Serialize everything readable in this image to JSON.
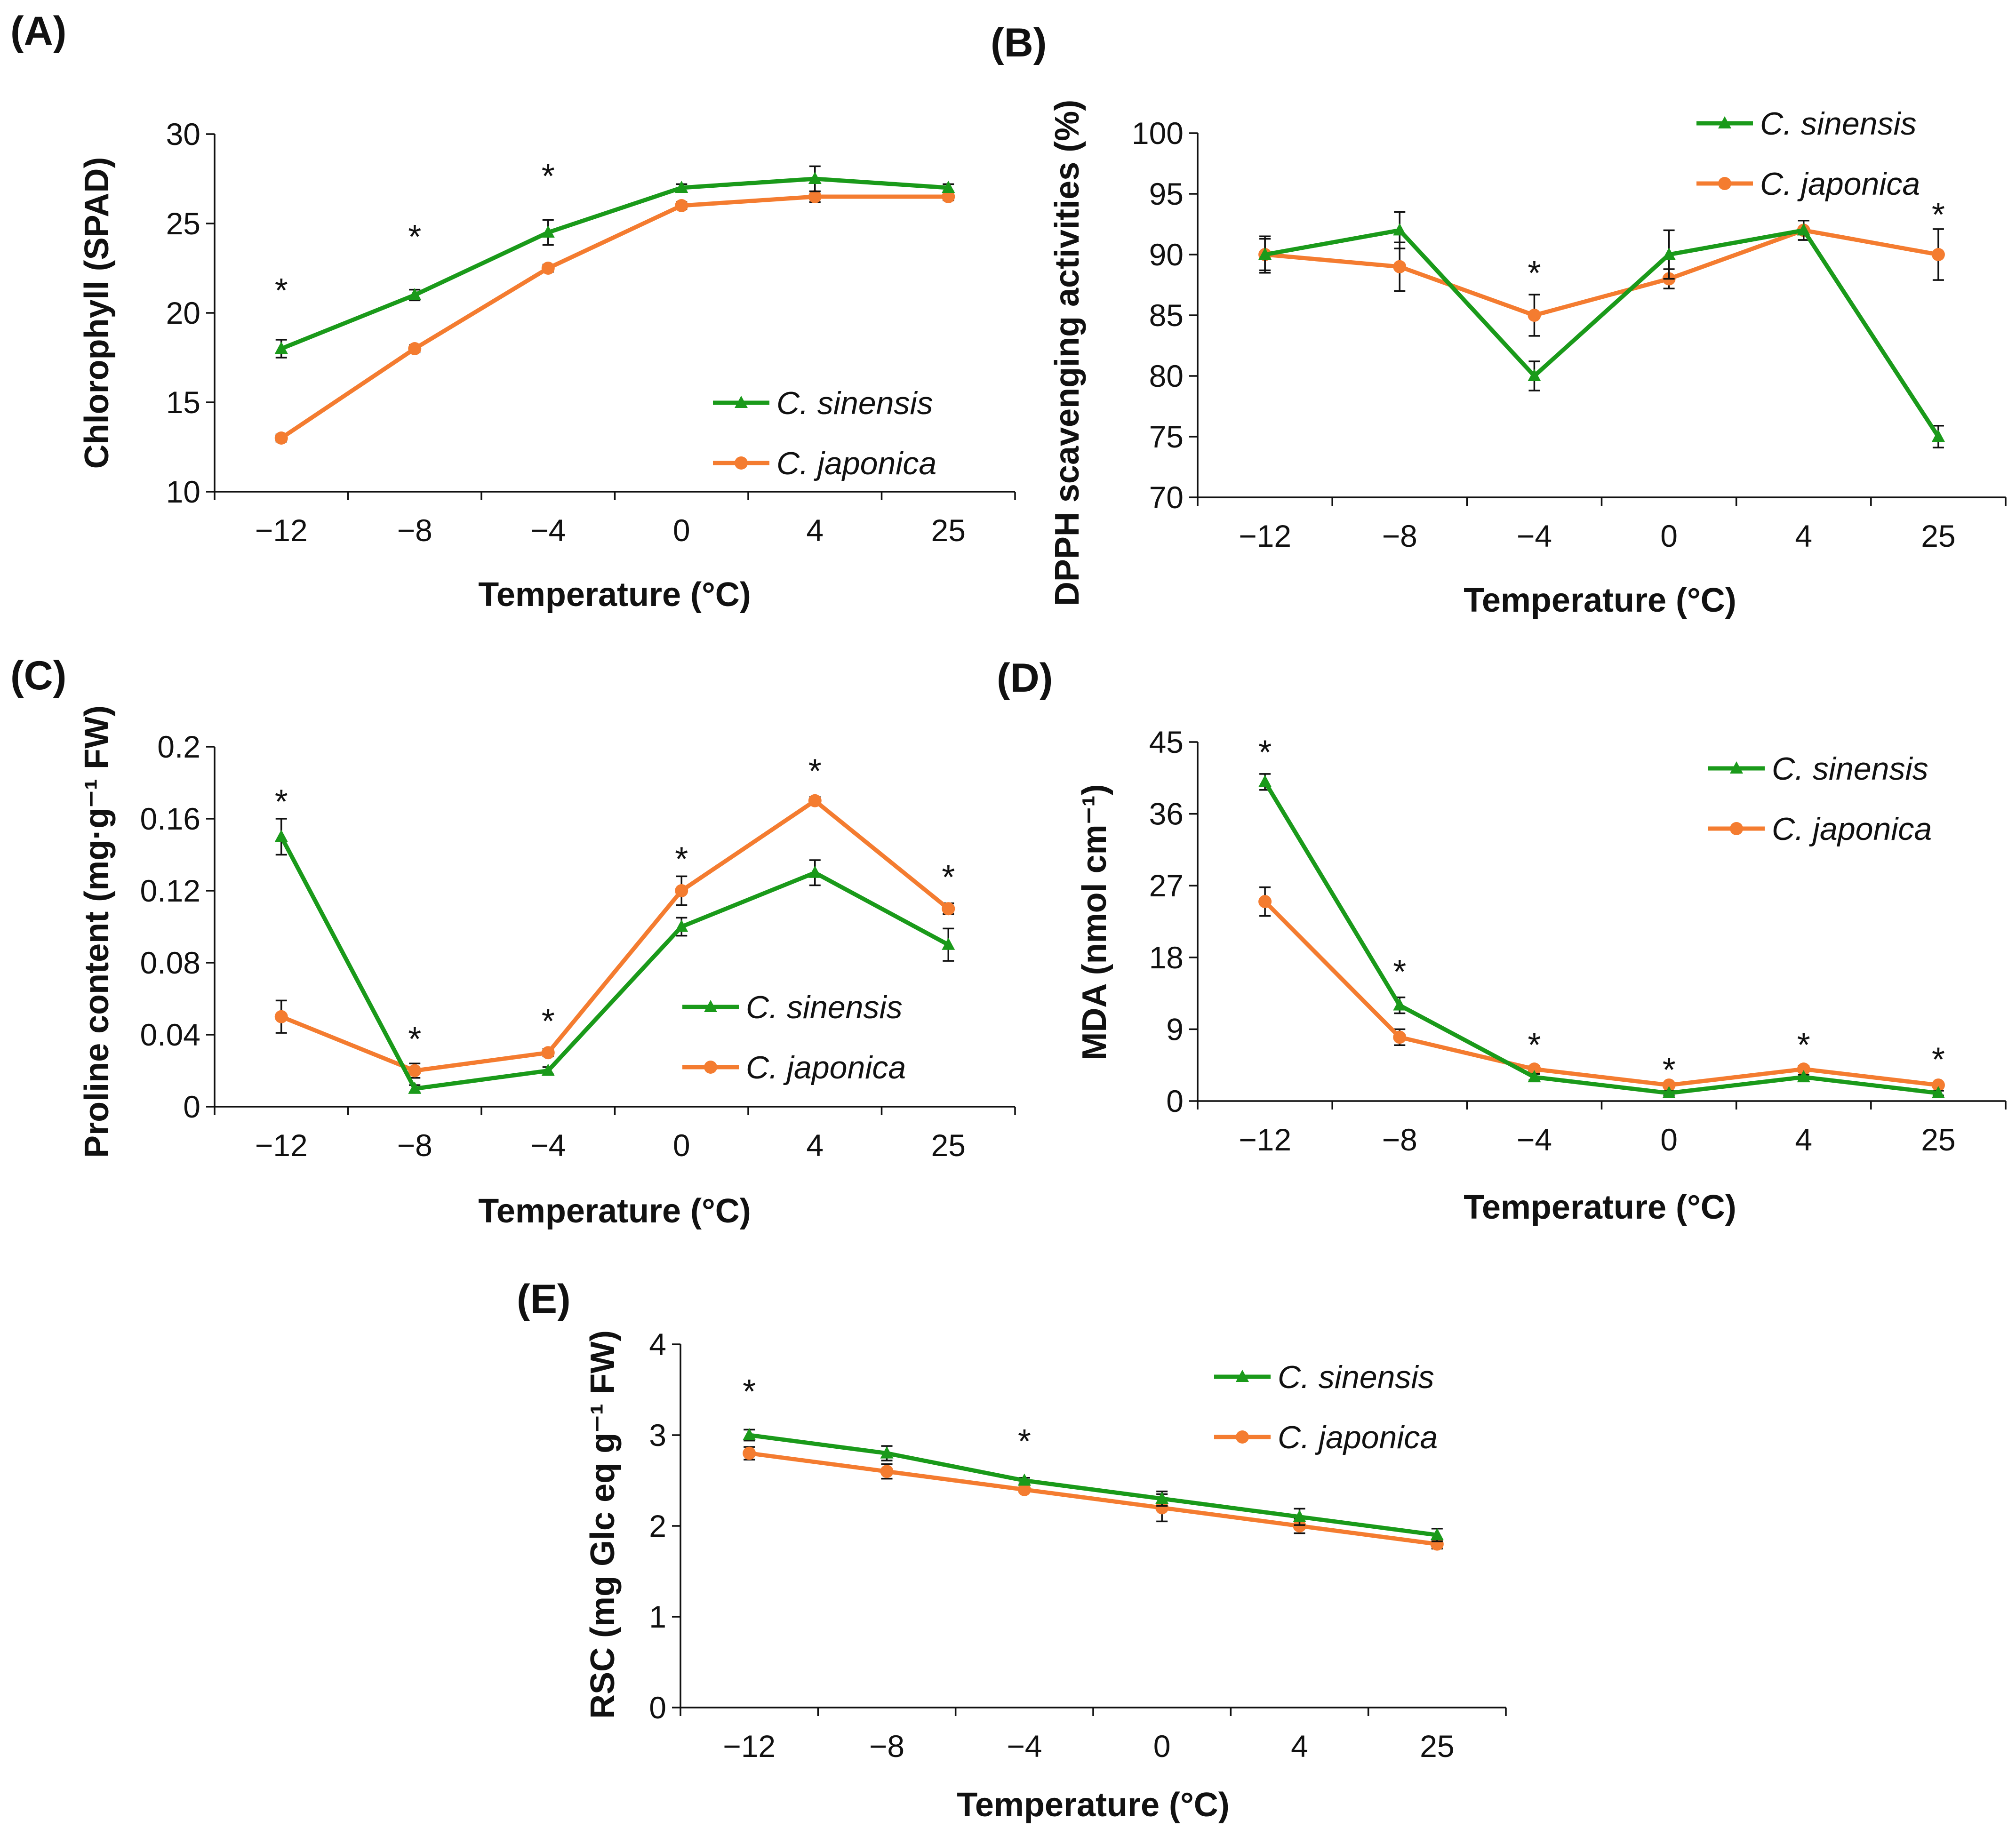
{
  "colors": {
    "sinensis": "#1a9a1a",
    "japonica": "#f47c30",
    "axis": "#111111"
  },
  "marker_shapes": {
    "sinensis": "triangle-icon",
    "japonica": "circle-icon"
  },
  "chart_data": [
    {
      "id": "A",
      "panel_label": "(A)",
      "type": "line",
      "categories": [
        "−12",
        "−8",
        "−4",
        "0",
        "4",
        "25"
      ],
      "ylabel": "Chlorophyll (SPAD)",
      "xlabel": "Temperature (°C)",
      "ylim": [
        10,
        30
      ],
      "yticks": [
        10,
        15,
        20,
        25,
        30
      ],
      "ytick_labels": [
        "10",
        "15",
        "20",
        "25",
        "30"
      ],
      "legend_position": "bottom-right",
      "series": [
        {
          "name": "C. sinensis",
          "key": "sinensis",
          "values": [
            18,
            21,
            24.5,
            27,
            27.5,
            27
          ],
          "errors": [
            0.5,
            0.3,
            0.7,
            0.2,
            0.7,
            0.2
          ]
        },
        {
          "name": "C. japonica",
          "key": "japonica",
          "values": [
            13,
            18,
            22.5,
            26,
            26.5,
            26.5
          ],
          "errors": [
            0.2,
            0.2,
            0.2,
            0.2,
            0.3,
            0.2
          ]
        }
      ],
      "significance": [
        {
          "index": 0,
          "symbol": "*",
          "at": 21.6
        },
        {
          "index": 1,
          "symbol": "*",
          "at": 24.6
        },
        {
          "index": 2,
          "symbol": "*",
          "at": 28.0
        }
      ]
    },
    {
      "id": "B",
      "panel_label": "(B)",
      "type": "line",
      "categories": [
        "−12",
        "−8",
        "−4",
        "0",
        "4",
        "25"
      ],
      "ylabel": "DPPH scavenging activities (%)",
      "xlabel": "Temperature (°C)",
      "ylim": [
        70,
        100
      ],
      "yticks": [
        70,
        75,
        80,
        85,
        90,
        95,
        100
      ],
      "ytick_labels": [
        "70",
        "75",
        "80",
        "85",
        "90",
        "95",
        "100"
      ],
      "legend_position": "top-right",
      "series": [
        {
          "name": "C. sinensis",
          "key": "sinensis",
          "values": [
            90,
            92,
            80,
            90,
            92,
            75
          ],
          "errors": [
            1.5,
            1.5,
            1.2,
            2.0,
            0.8,
            0.9
          ]
        },
        {
          "name": "C. japonica",
          "key": "japonica",
          "values": [
            90,
            89,
            85,
            88,
            92,
            90
          ],
          "errors": [
            1.3,
            2.0,
            1.7,
            0.8,
            0.8,
            2.1
          ]
        }
      ],
      "significance": [
        {
          "index": 2,
          "symbol": "*",
          "at": 89.0
        },
        {
          "index": 5,
          "symbol": "*",
          "at": 93.8
        }
      ]
    },
    {
      "id": "C",
      "panel_label": "(C)",
      "type": "line",
      "categories": [
        "−12",
        "−8",
        "−4",
        "0",
        "4",
        "25"
      ],
      "ylabel": "Proline content (mg·g⁻¹ FW)",
      "xlabel": "Temperature (°C)",
      "ylim": [
        0,
        0.2
      ],
      "yticks": [
        0,
        0.04,
        0.08,
        0.12,
        0.16,
        0.2
      ],
      "ytick_labels": [
        "0",
        "0.04",
        "0.08",
        "0.12",
        "0.16",
        "0.2"
      ],
      "legend_position": "bottom-right",
      "series": [
        {
          "name": "C. sinensis",
          "key": "sinensis",
          "values": [
            0.15,
            0.01,
            0.02,
            0.1,
            0.13,
            0.09
          ],
          "errors": [
            0.01,
            0.002,
            0.002,
            0.005,
            0.007,
            0.009
          ]
        },
        {
          "name": "C. japonica",
          "key": "japonica",
          "values": [
            0.05,
            0.02,
            0.03,
            0.12,
            0.17,
            0.11
          ],
          "errors": [
            0.009,
            0.004,
            0.002,
            0.008,
            0.002,
            0.003
          ]
        }
      ],
      "significance": [
        {
          "index": 0,
          "symbol": "*",
          "at": 0.173
        },
        {
          "index": 1,
          "symbol": "*",
          "at": 0.041
        },
        {
          "index": 2,
          "symbol": "*",
          "at": 0.051
        },
        {
          "index": 3,
          "symbol": "*",
          "at": 0.141
        },
        {
          "index": 4,
          "symbol": "*",
          "at": 0.19
        },
        {
          "index": 5,
          "symbol": "*",
          "at": 0.131
        }
      ]
    },
    {
      "id": "D",
      "panel_label": "(D)",
      "type": "line",
      "categories": [
        "−12",
        "−8",
        "−4",
        "0",
        "4",
        "25"
      ],
      "ylabel": "MDA (nmol cm⁻¹)",
      "xlabel": "Temperature (°C)",
      "ylim": [
        0,
        45
      ],
      "yticks": [
        0,
        9,
        18,
        27,
        36,
        45
      ],
      "ytick_labels": [
        "0",
        "9",
        "18",
        "27",
        "36",
        "45"
      ],
      "legend_position": "top-right",
      "series": [
        {
          "name": "C. sinensis",
          "key": "sinensis",
          "values": [
            40,
            12,
            3,
            1,
            3,
            1
          ],
          "errors": [
            1.0,
            1.0,
            0.4,
            0.3,
            0.3,
            0.3
          ]
        },
        {
          "name": "C. japonica",
          "key": "japonica",
          "values": [
            25,
            8,
            4,
            2,
            4,
            2
          ],
          "errors": [
            1.8,
            1.0,
            0.4,
            0.3,
            0.4,
            0.3
          ]
        }
      ],
      "significance": [
        {
          "index": 0,
          "symbol": "*",
          "at": 44.5
        },
        {
          "index": 1,
          "symbol": "*",
          "at": 17.0
        },
        {
          "index": 2,
          "symbol": "*",
          "at": 7.8
        },
        {
          "index": 3,
          "symbol": "*",
          "at": 4.7
        },
        {
          "index": 4,
          "symbol": "*",
          "at": 7.8
        },
        {
          "index": 5,
          "symbol": "*",
          "at": 6.0
        }
      ]
    },
    {
      "id": "E",
      "panel_label": "(E)",
      "type": "line",
      "categories": [
        "−12",
        "−8",
        "−4",
        "0",
        "4",
        "25"
      ],
      "ylabel": "RSC (mg Glc eq g⁻¹ FW)",
      "xlabel": "Temperature (°C)",
      "ylim": [
        0,
        4
      ],
      "yticks": [
        0,
        1,
        2,
        3,
        4
      ],
      "ytick_labels": [
        "0",
        "1",
        "2",
        "3",
        "4"
      ],
      "legend_position": "top-right",
      "series": [
        {
          "name": "C. sinensis",
          "key": "sinensis",
          "values": [
            3.0,
            2.8,
            2.5,
            2.3,
            2.1,
            1.9
          ],
          "errors": [
            0.06,
            0.08,
            0.03,
            0.08,
            0.09,
            0.07
          ]
        },
        {
          "name": "C. japonica",
          "key": "japonica",
          "values": [
            2.8,
            2.6,
            2.4,
            2.2,
            2.0,
            1.8
          ],
          "errors": [
            0.07,
            0.08,
            0.03,
            0.15,
            0.08,
            0.05
          ]
        }
      ],
      "significance": [
        {
          "index": 0,
          "symbol": "*",
          "at": 3.55
        },
        {
          "index": 2,
          "symbol": "*",
          "at": 3.0
        }
      ]
    }
  ]
}
